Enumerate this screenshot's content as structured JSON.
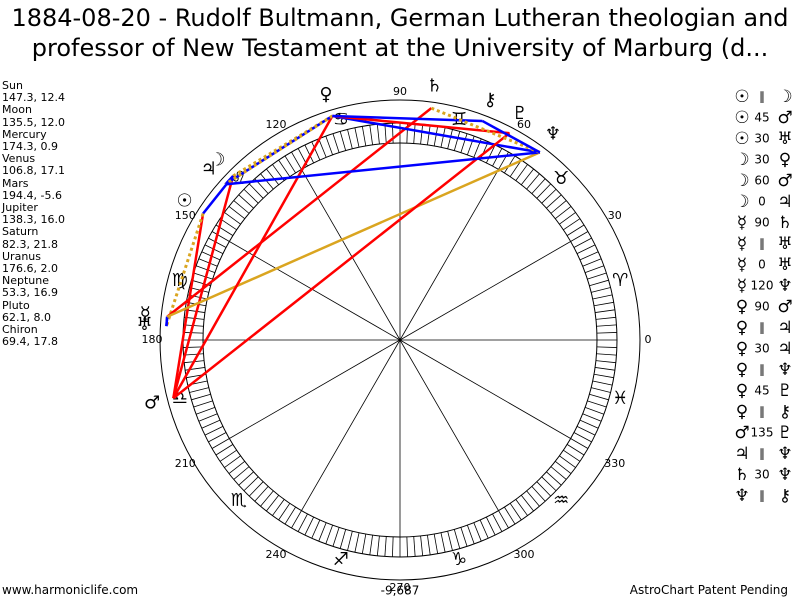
{
  "title": [
    "1884-08-20 - Rudolf Bultmann, German Lutheran theologian and",
    "professor of New Testament at the University of Marburg (d..."
  ],
  "planets": [
    {
      "name": "Sun",
      "coords": "147.3, 12.4",
      "glyph": "☉"
    },
    {
      "name": "Moon",
      "coords": "135.5, 12.0",
      "glyph": "☽"
    },
    {
      "name": "Mercury",
      "coords": "174.3, 0.9",
      "glyph": "☿"
    },
    {
      "name": "Venus",
      "coords": "106.8, 17.1",
      "glyph": "♀"
    },
    {
      "name": "Mars",
      "coords": "194.4, -5.6",
      "glyph": "♂"
    },
    {
      "name": "Jupiter",
      "coords": "138.3, 16.0",
      "glyph": "♃"
    },
    {
      "name": "Saturn",
      "coords": "82.3, 21.8",
      "glyph": "♄"
    },
    {
      "name": "Uranus",
      "coords": "176.6, 2.0",
      "glyph": "♅"
    },
    {
      "name": "Neptune",
      "coords": "53.3, 16.9",
      "glyph": "♆"
    },
    {
      "name": "Pluto",
      "coords": "62.1, 8.0",
      "glyph": "♇"
    },
    {
      "name": "Chiron",
      "coords": "69.4, 17.8",
      "glyph": "⚷"
    }
  ],
  "aspects": [
    {
      "a": "☉",
      "type": "∥",
      "b": "☽",
      "color": "#0000ff",
      "style": "solid"
    },
    {
      "a": "☉",
      "type": "45",
      "b": "♂",
      "color": "#ff0000",
      "style": "solid"
    },
    {
      "a": "☉",
      "type": "30",
      "b": "♅",
      "color": "#daa520",
      "style": "dotted"
    },
    {
      "a": "☽",
      "type": "30",
      "b": "♀",
      "color": "#daa520",
      "style": "dotted"
    },
    {
      "a": "☽",
      "type": "60",
      "b": "♂",
      "color": "#ff0000",
      "style": "solid"
    },
    {
      "a": "☽",
      "type": "0",
      "b": "♃",
      "color": "#0000ff",
      "style": "solid"
    },
    {
      "a": "☿",
      "type": "90",
      "b": "♄",
      "color": "#ff0000",
      "style": "solid"
    },
    {
      "a": "☿",
      "type": "∥",
      "b": "♅",
      "color": "#0000ff",
      "style": "solid"
    },
    {
      "a": "☿",
      "type": "0",
      "b": "♅",
      "color": "#0000ff",
      "style": "solid"
    },
    {
      "a": "☿",
      "type": "120",
      "b": "♆",
      "color": "#daa520",
      "style": "solid"
    },
    {
      "a": "♀",
      "type": "90",
      "b": "♂",
      "color": "#ff0000",
      "style": "solid"
    },
    {
      "a": "♀",
      "type": "∥",
      "b": "♃",
      "color": "#0000ff",
      "style": "solid"
    },
    {
      "a": "♀",
      "type": "30",
      "b": "♃",
      "color": "#daa520",
      "style": "dotted"
    },
    {
      "a": "♀",
      "type": "∥",
      "b": "♆",
      "color": "#0000ff",
      "style": "solid"
    },
    {
      "a": "♀",
      "type": "45",
      "b": "♇",
      "color": "#ff0000",
      "style": "solid"
    },
    {
      "a": "♀",
      "type": "∥",
      "b": "⚷",
      "color": "#0000ff",
      "style": "solid"
    },
    {
      "a": "♂",
      "type": "135",
      "b": "♇",
      "color": "#ff0000",
      "style": "solid"
    },
    {
      "a": "♃",
      "type": "∥",
      "b": "♆",
      "color": "#0000ff",
      "style": "solid"
    },
    {
      "a": "♄",
      "type": "30",
      "b": "♆",
      "color": "#daa520",
      "style": "dotted"
    },
    {
      "a": "♆",
      "type": "∥",
      "b": "⚷",
      "color": "#0000ff",
      "style": "solid"
    }
  ],
  "signs": [
    "♈",
    "♉",
    "♊",
    "♋",
    "♌",
    "♍",
    "♎",
    "♏",
    "♐",
    "♑",
    "♒",
    "♓"
  ],
  "degree_labels": [
    0,
    30,
    60,
    90,
    120,
    150,
    180,
    210,
    240,
    270,
    300,
    330
  ],
  "bottom_value": "-9,687",
  "footer": {
    "left": "www.harmoniclife.com",
    "right": "AstroChart Patent Pending"
  }
}
